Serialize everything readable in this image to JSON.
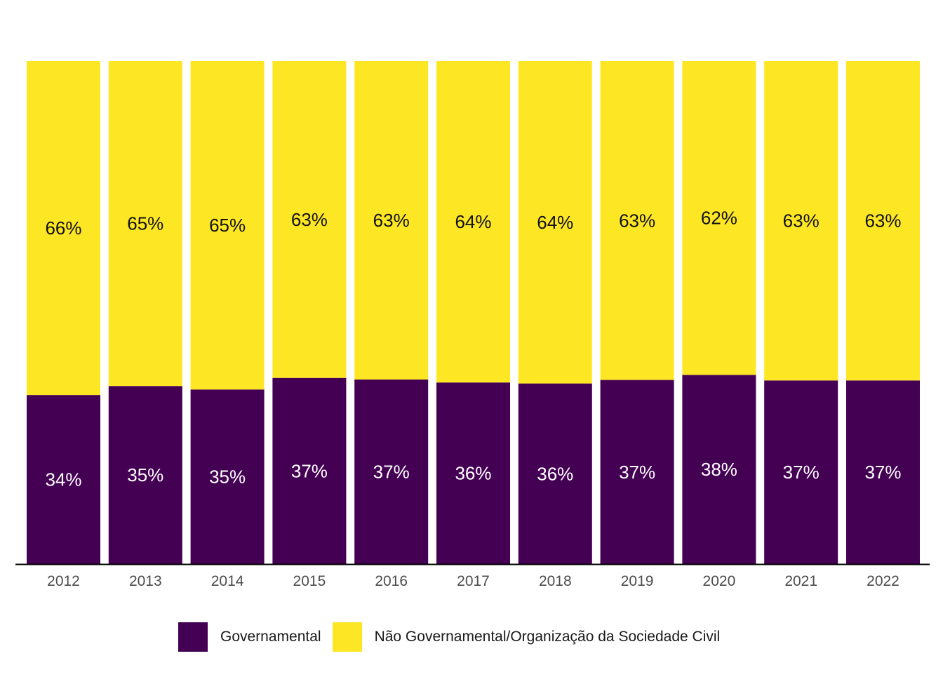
{
  "chart_data": {
    "type": "bar",
    "stacked": true,
    "normalized": true,
    "categories": [
      "2012",
      "2013",
      "2014",
      "2015",
      "2016",
      "2017",
      "2018",
      "2019",
      "2020",
      "2021",
      "2022"
    ],
    "series": [
      {
        "name": "Governamental",
        "color": "#440154",
        "values": [
          33.6,
          35.4,
          34.7,
          37.0,
          36.7,
          36.1,
          35.9,
          36.6,
          37.6,
          36.5,
          36.5
        ],
        "labels": [
          "34%",
          "35%",
          "35%",
          "37%",
          "37%",
          "36%",
          "36%",
          "37%",
          "38%",
          "37%",
          "37%"
        ]
      },
      {
        "name": "Não Governamental/Organização da Sociedade Civil",
        "color": "#fde725",
        "values": [
          66.4,
          64.6,
          65.3,
          63.0,
          63.3,
          63.9,
          64.1,
          63.4,
          62.4,
          63.5,
          63.5
        ],
        "labels": [
          "66%",
          "65%",
          "65%",
          "63%",
          "63%",
          "64%",
          "64%",
          "63%",
          "62%",
          "63%",
          "63%"
        ]
      }
    ],
    "ylim": [
      0,
      100
    ],
    "grid": false,
    "legend_position": "bottom",
    "title": "",
    "xlabel": "",
    "ylabel": ""
  }
}
